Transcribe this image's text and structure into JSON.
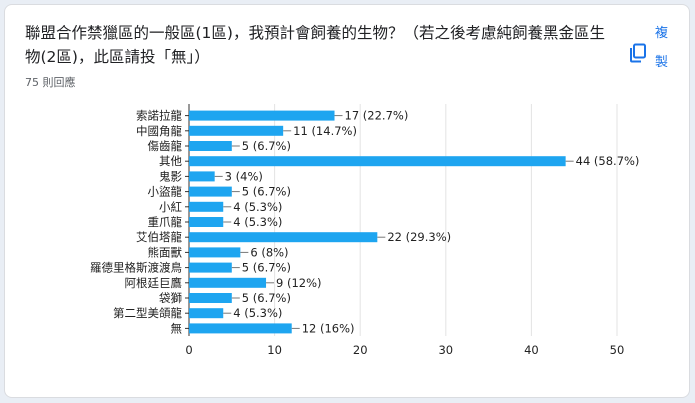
{
  "header": {
    "title": "聯盟合作禁獵區的一般區(1區)，我預計會飼養的生物？（若之後考慮純飼養黑金區生物(2區)，此區請投「無」）",
    "responses": "75 則回應",
    "copy_label": "複製",
    "copy_icon": "copy-icon"
  },
  "colors": {
    "bar": "#1ea5f0",
    "grid": "#e3e3e3",
    "axis": "#333333",
    "text": "#222222"
  },
  "chart_data": {
    "type": "bar",
    "orientation": "horizontal",
    "categories": [
      "索諾拉龍",
      "中國角龍",
      "傷齒龍",
      "其他",
      "鬼影",
      "小盜龍",
      "小紅",
      "重爪龍",
      "艾伯塔龍",
      "熊面獸",
      "羅德里格斯渡渡鳥",
      "阿根廷巨鷹",
      "袋獅",
      "第二型美頜龍",
      "無"
    ],
    "values": [
      17,
      11,
      5,
      44,
      3,
      5,
      4,
      4,
      22,
      6,
      5,
      9,
      5,
      4,
      12
    ],
    "data_labels": [
      "17 (22.7%)",
      "11 (14.7%)",
      "5 (6.7%)",
      "44 (58.7%)",
      "3 (4%)",
      "5 (6.7%)",
      "4 (5.3%)",
      "4 (5.3%)",
      "22 (29.3%)",
      "6 (8%)",
      "5 (6.7%)",
      "9 (12%)",
      "5 (6.7%)",
      "4 (5.3%)",
      "12 (16%)"
    ],
    "xticks": [
      0,
      10,
      20,
      30,
      40,
      50
    ],
    "xlim": [
      0,
      50
    ],
    "grid": true,
    "title": "",
    "xlabel": "",
    "ylabel": ""
  }
}
